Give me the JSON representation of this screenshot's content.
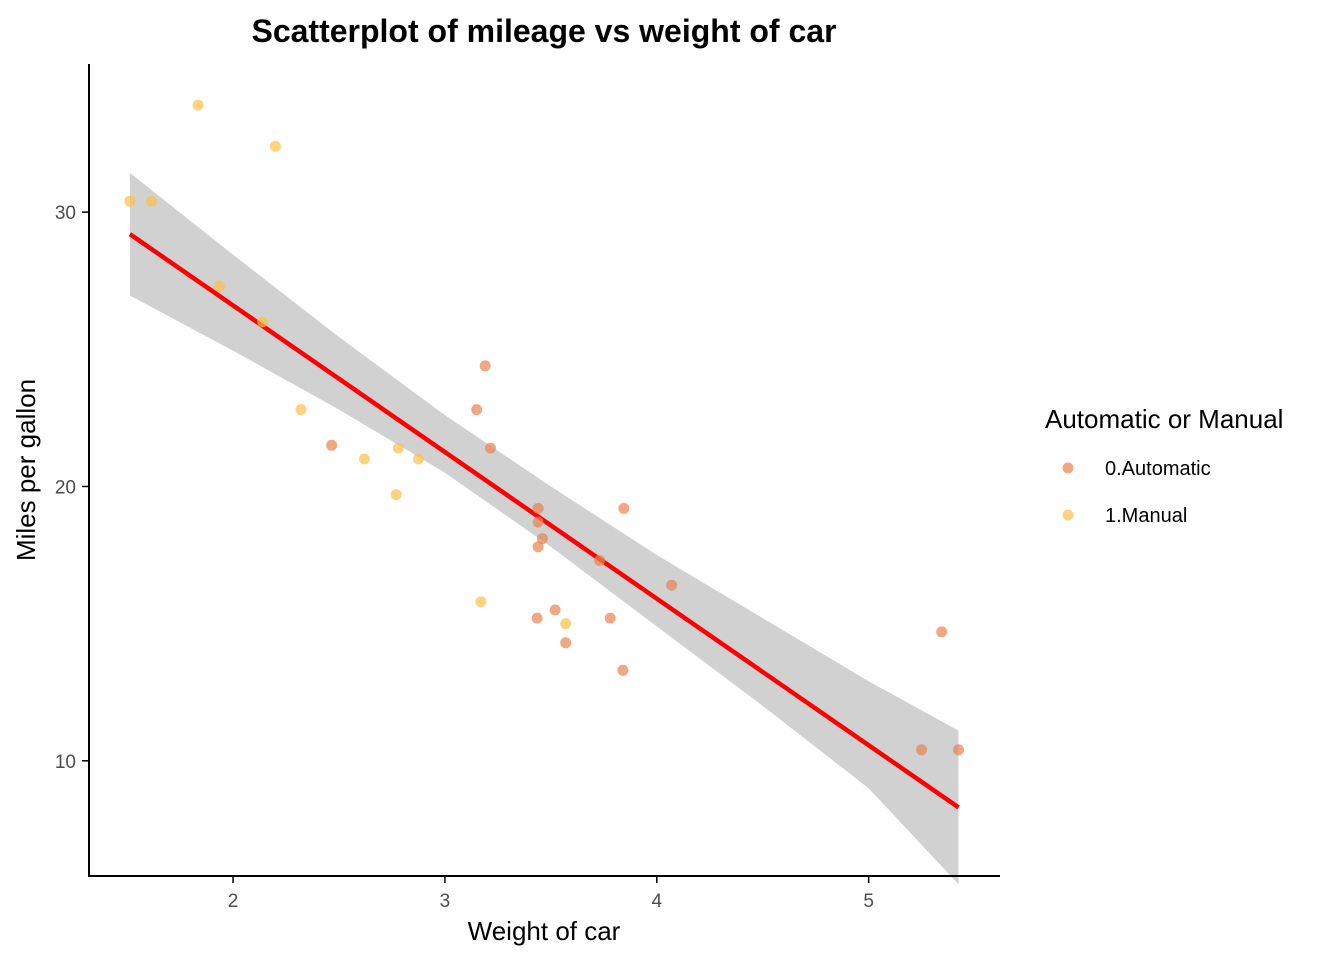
{
  "chart_data": {
    "type": "scatter",
    "title": "Scatterplot of mileage vs weight of car",
    "xlabel": "Weight of car",
    "ylabel": "Miles per gallon",
    "xlim": [
      1.32,
      5.62
    ],
    "ylim": [
      5.8,
      35.4
    ],
    "xticks": [
      2,
      3,
      4,
      5
    ],
    "yticks": [
      10,
      20,
      30
    ],
    "grid": false,
    "legend": {
      "title": "Automatic or Manual",
      "placement": "right",
      "entries": [
        {
          "label": "0.Automatic",
          "color": "#E8834F"
        },
        {
          "label": "1.Manual",
          "color": "#FDBF47"
        }
      ]
    },
    "series": [
      {
        "name": "0.Automatic",
        "color": "#E8834F",
        "points": [
          {
            "x": 3.215,
            "y": 21.4
          },
          {
            "x": 3.44,
            "y": 18.7
          },
          {
            "x": 3.46,
            "y": 18.1
          },
          {
            "x": 3.57,
            "y": 14.3
          },
          {
            "x": 3.19,
            "y": 24.4
          },
          {
            "x": 3.15,
            "y": 22.8
          },
          {
            "x": 3.44,
            "y": 19.2
          },
          {
            "x": 3.44,
            "y": 17.8
          },
          {
            "x": 4.07,
            "y": 16.4
          },
          {
            "x": 3.73,
            "y": 17.3
          },
          {
            "x": 3.78,
            "y": 15.2
          },
          {
            "x": 5.25,
            "y": 10.4
          },
          {
            "x": 5.424,
            "y": 10.4
          },
          {
            "x": 5.345,
            "y": 14.7
          },
          {
            "x": 2.465,
            "y": 21.5
          },
          {
            "x": 3.52,
            "y": 15.5
          },
          {
            "x": 3.435,
            "y": 15.2
          },
          {
            "x": 3.84,
            "y": 13.3
          },
          {
            "x": 3.845,
            "y": 19.2
          }
        ]
      },
      {
        "name": "1.Manual",
        "color": "#FDBF47",
        "points": [
          {
            "x": 2.62,
            "y": 21.0
          },
          {
            "x": 2.875,
            "y": 21.0
          },
          {
            "x": 2.32,
            "y": 22.8
          },
          {
            "x": 2.2,
            "y": 32.4
          },
          {
            "x": 1.615,
            "y": 30.4
          },
          {
            "x": 1.835,
            "y": 33.9
          },
          {
            "x": 1.935,
            "y": 27.3
          },
          {
            "x": 2.14,
            "y": 26.0
          },
          {
            "x": 1.513,
            "y": 30.4
          },
          {
            "x": 3.17,
            "y": 15.8
          },
          {
            "x": 2.77,
            "y": 19.7
          },
          {
            "x": 3.57,
            "y": 15.0
          },
          {
            "x": 2.78,
            "y": 21.4
          }
        ]
      }
    ],
    "trend_line": {
      "color": "#FF0000",
      "x_range": [
        1.513,
        5.424
      ],
      "intercept": 37.285,
      "slope": -5.344
    },
    "confidence_band": {
      "color": "#BEBEBE",
      "points": [
        {
          "x": 1.513,
          "lower": 26.96,
          "upper": 31.43
        },
        {
          "x": 2.0,
          "lower": 24.95,
          "upper": 28.45
        },
        {
          "x": 2.5,
          "lower": 22.8,
          "upper": 25.45
        },
        {
          "x": 3.0,
          "lower": 20.5,
          "upper": 22.6
        },
        {
          "x": 3.5,
          "lower": 17.8,
          "upper": 20.0
        },
        {
          "x": 4.0,
          "lower": 14.9,
          "upper": 17.5
        },
        {
          "x": 4.5,
          "lower": 12.0,
          "upper": 15.2
        },
        {
          "x": 5.0,
          "lower": 9.0,
          "upper": 12.9
        },
        {
          "x": 5.424,
          "lower": 5.5,
          "upper": 11.1
        }
      ]
    }
  }
}
